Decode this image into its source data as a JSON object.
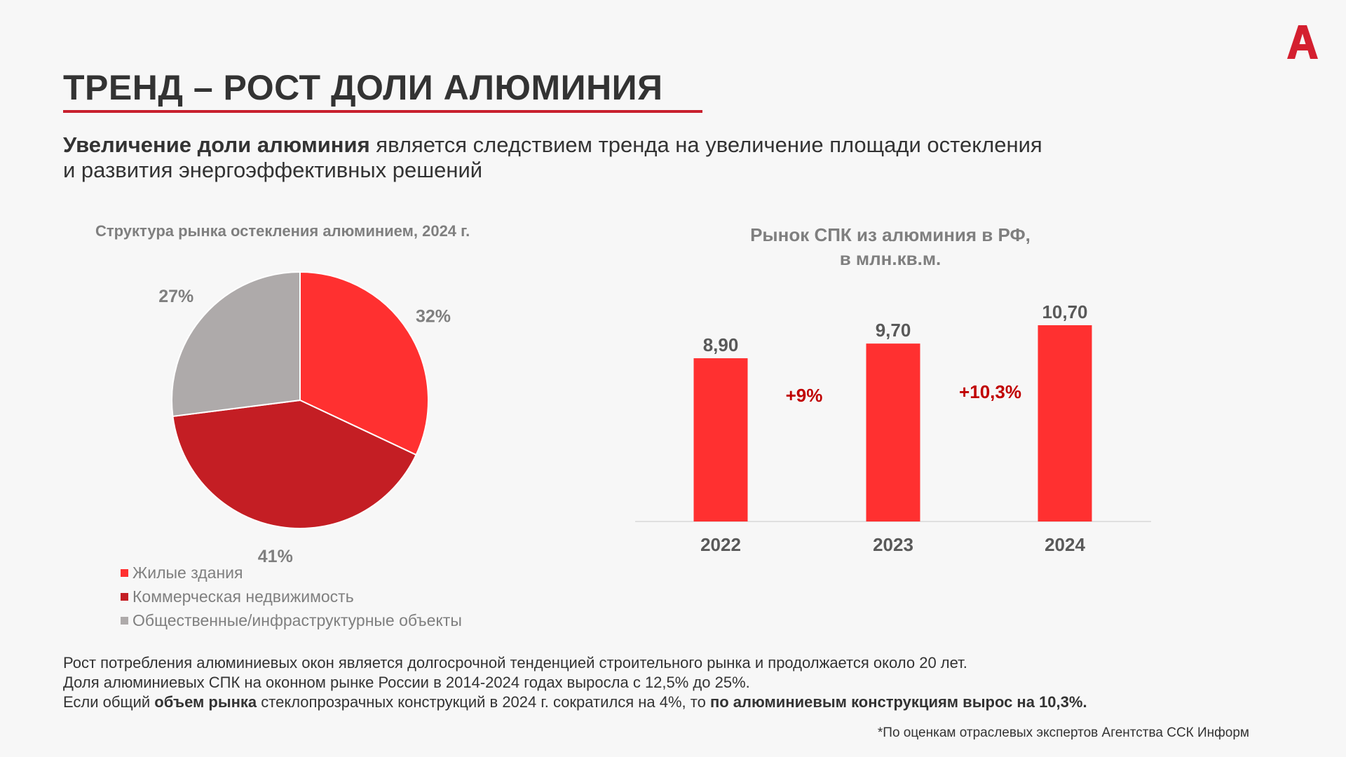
{
  "title": "ТРЕНД – РОСТ ДОЛИ АЛЮМИНИЯ",
  "subtitle": {
    "bold": "Увеличение доли алюминия",
    "rest": " является следствием тренда на увеличение площади остекления",
    "line2": "и развития энергоэффективных решений"
  },
  "colors": {
    "accent": "#c8202e",
    "residential": "#ff3030",
    "commercial": "#c41e24",
    "public": "#aeaaaa",
    "bar": "#ff3030",
    "growth": "#c00000"
  },
  "logo_icon": "alutech-a-logo",
  "chart_data": [
    {
      "type": "pie",
      "title": "Структура рынка остекления алюминием, 2024 г.",
      "slices": [
        {
          "label": "Жилые здания",
          "value": 32,
          "display": "32%",
          "color": "#ff3030"
        },
        {
          "label": "Коммерческая недвижимость",
          "value": 41,
          "display": "41%",
          "color": "#c41e24"
        },
        {
          "label": "Общественные/инфраструктурные объекты",
          "value": 27,
          "display": "27%",
          "color": "#aeaaaa"
        }
      ],
      "legend_position": "bottom"
    },
    {
      "type": "bar",
      "title_line1": "Рынок СПК из алюминия в РФ,",
      "title_line2": "в млн.кв.м.",
      "categories": [
        "2022",
        "2023",
        "2024"
      ],
      "values": [
        8.9,
        9.7,
        10.7
      ],
      "value_labels": [
        "8,90",
        "9,70",
        "10,70"
      ],
      "growth_labels": [
        "+9%",
        "+10,3%"
      ],
      "ylim": [
        0,
        10.7
      ],
      "grid": false
    }
  ],
  "bottom": {
    "line1": "Рост потребления алюминиевых окон является долгосрочной тенденцией строительного рынка и продолжается около 20 лет.",
    "line2": "Доля алюминиевых СПК на оконном рынке России в 2014-2024 годах выросла с 12,5% до 25%.",
    "line3_a": "Если общий ",
    "line3_b": "объем рынка",
    "line3_c": " стеклопрозрачных конструкций в 2024 г. сократился на 4%, то ",
    "line3_d": "по алюминиевым конструкциям вырос на 10,3%."
  },
  "footnote": "*По оценкам отраслевых экспертов Агентства ССК Информ"
}
